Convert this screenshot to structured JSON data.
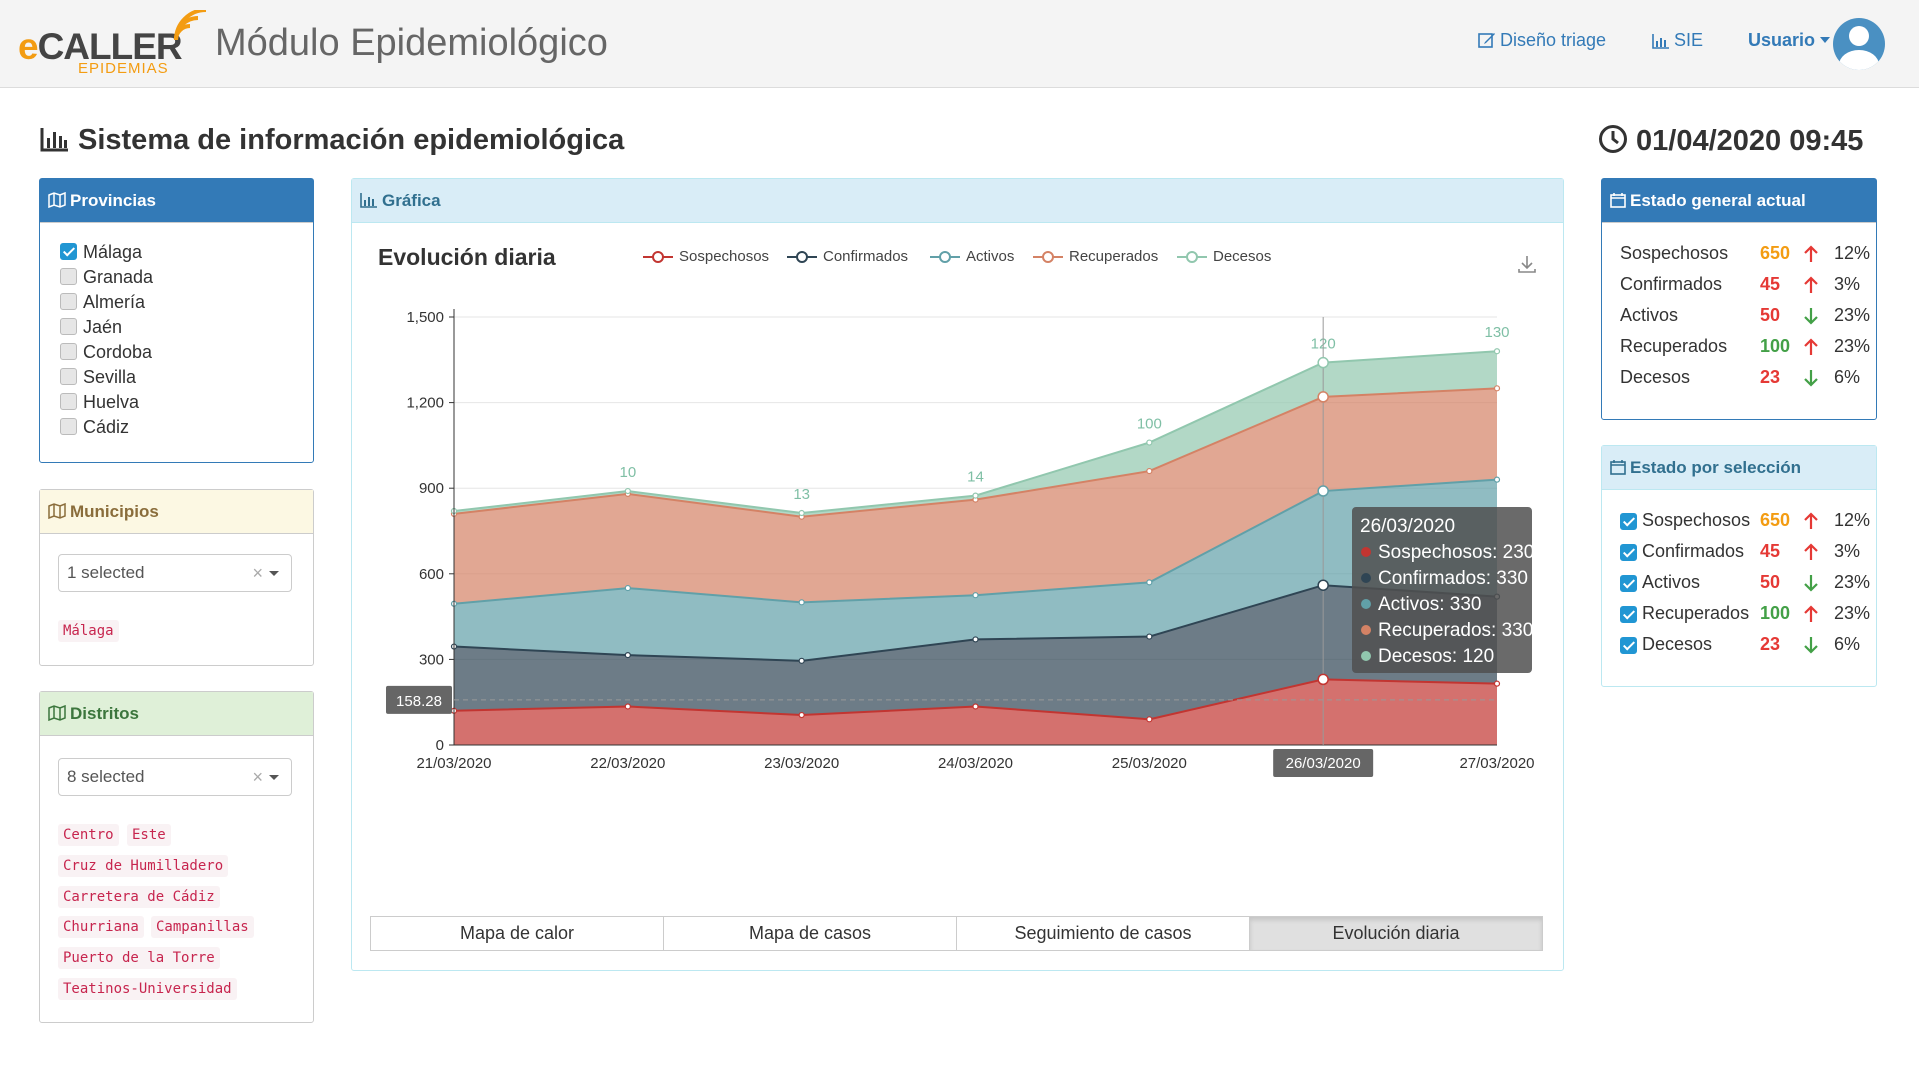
{
  "header": {
    "logo_main": "CALLER",
    "logo_e": "e",
    "logo_sub": "EPIDEMIAS",
    "app_title": "Módulo Epidemiológico",
    "nav_triage": "Diseño triage",
    "nav_sie": "SIE",
    "nav_user": "Usuario"
  },
  "page": {
    "title": "Sistema de información epidemiológica",
    "datetime": "01/04/2020 09:45"
  },
  "provincias": {
    "title": "Provincias",
    "items": [
      {
        "label": "Málaga",
        "checked": true
      },
      {
        "label": "Granada",
        "checked": false
      },
      {
        "label": "Almería",
        "checked": false
      },
      {
        "label": "Jaén",
        "checked": false
      },
      {
        "label": "Cordoba",
        "checked": false
      },
      {
        "label": "Sevilla",
        "checked": false
      },
      {
        "label": "Huelva",
        "checked": false
      },
      {
        "label": "Cádiz",
        "checked": false
      }
    ]
  },
  "municipios": {
    "title": "Municipios",
    "select_value": "1 selected",
    "clear": "×",
    "tags": [
      "Málaga"
    ]
  },
  "distritos": {
    "title": "Distritos",
    "select_value": "8 selected",
    "clear": "×",
    "tags": [
      "Centro",
      "Este",
      "Cruz de Humilladero",
      "Carretera de Cádiz",
      "Churriana",
      "Campanillas",
      "Puerto de la Torre",
      "Teatinos-Universidad"
    ]
  },
  "grafica": {
    "title": "Gráfica",
    "tabs": [
      "Mapa de calor",
      "Mapa de casos",
      "Seguimiento de casos",
      "Evolución diaria"
    ],
    "active_tab": "Evolución diaria"
  },
  "colors": {
    "sospechosos": "#c23531",
    "confirmados": "#2f4554",
    "activos": "#61a0a8",
    "recuperados": "#d48265",
    "decesos": "#91c7ae"
  },
  "chart_data": {
    "type": "area",
    "stacked": true,
    "title": "Evolución diaria",
    "categories": [
      "21/03/2020",
      "22/03/2020",
      "23/03/2020",
      "24/03/2020",
      "25/03/2020",
      "26/03/2020",
      "27/03/2020"
    ],
    "series": [
      {
        "name": "Sospechosos",
        "values": [
          120,
          135,
          105,
          135,
          90,
          230,
          215
        ]
      },
      {
        "name": "Confirmados",
        "values": [
          225,
          180,
          190,
          235,
          290,
          330,
          305
        ]
      },
      {
        "name": "Activos",
        "values": [
          150,
          235,
          205,
          155,
          190,
          330,
          410
        ]
      },
      {
        "name": "Recuperados",
        "values": [
          315,
          330,
          300,
          335,
          390,
          330,
          320
        ]
      },
      {
        "name": "Decesos",
        "values": [
          10,
          10,
          13,
          14,
          100,
          120,
          130
        ]
      }
    ],
    "top_labels": [
      "10",
      "13",
      "14",
      "100",
      "120",
      "130"
    ],
    "ylim": [
      0,
      1500
    ],
    "yticks": [
      "0",
      "300",
      "600",
      "900",
      "1,200",
      "1,500"
    ],
    "crosshair_value": "158.28",
    "highlight_category": "26/03/2020",
    "tooltip": {
      "date": "26/03/2020",
      "lines": [
        "Sospechosos: 230",
        "Confirmados: 330",
        "Activos: 330",
        "Recuperados: 330",
        "Decesos: 120"
      ]
    }
  },
  "estado_general": {
    "title": "Estado general actual",
    "rows": [
      {
        "label": "Sospechosos",
        "value": "650",
        "value_color": "orange",
        "trend": "up",
        "pct": "12%"
      },
      {
        "label": "Confirmados",
        "value": "45",
        "value_color": "red",
        "trend": "up",
        "pct": "3%"
      },
      {
        "label": "Activos",
        "value": "50",
        "value_color": "red",
        "trend": "down",
        "pct": "23%"
      },
      {
        "label": "Recuperados",
        "value": "100",
        "value_color": "green",
        "trend": "up",
        "pct": "23%"
      },
      {
        "label": "Decesos",
        "value": "23",
        "value_color": "red",
        "trend": "down",
        "pct": "6%"
      }
    ]
  },
  "estado_seleccion": {
    "title": "Estado por selección",
    "rows": [
      {
        "label": "Sospechosos",
        "value": "650",
        "value_color": "orange",
        "trend": "up",
        "pct": "12%"
      },
      {
        "label": "Confirmados",
        "value": "45",
        "value_color": "red",
        "trend": "up",
        "pct": "3%"
      },
      {
        "label": "Activos",
        "value": "50",
        "value_color": "red",
        "trend": "down",
        "pct": "23%"
      },
      {
        "label": "Recuperados",
        "value": "100",
        "value_color": "green",
        "trend": "up",
        "pct": "23%"
      },
      {
        "label": "Decesos",
        "value": "23",
        "value_color": "red",
        "trend": "down",
        "pct": "6%"
      }
    ]
  }
}
